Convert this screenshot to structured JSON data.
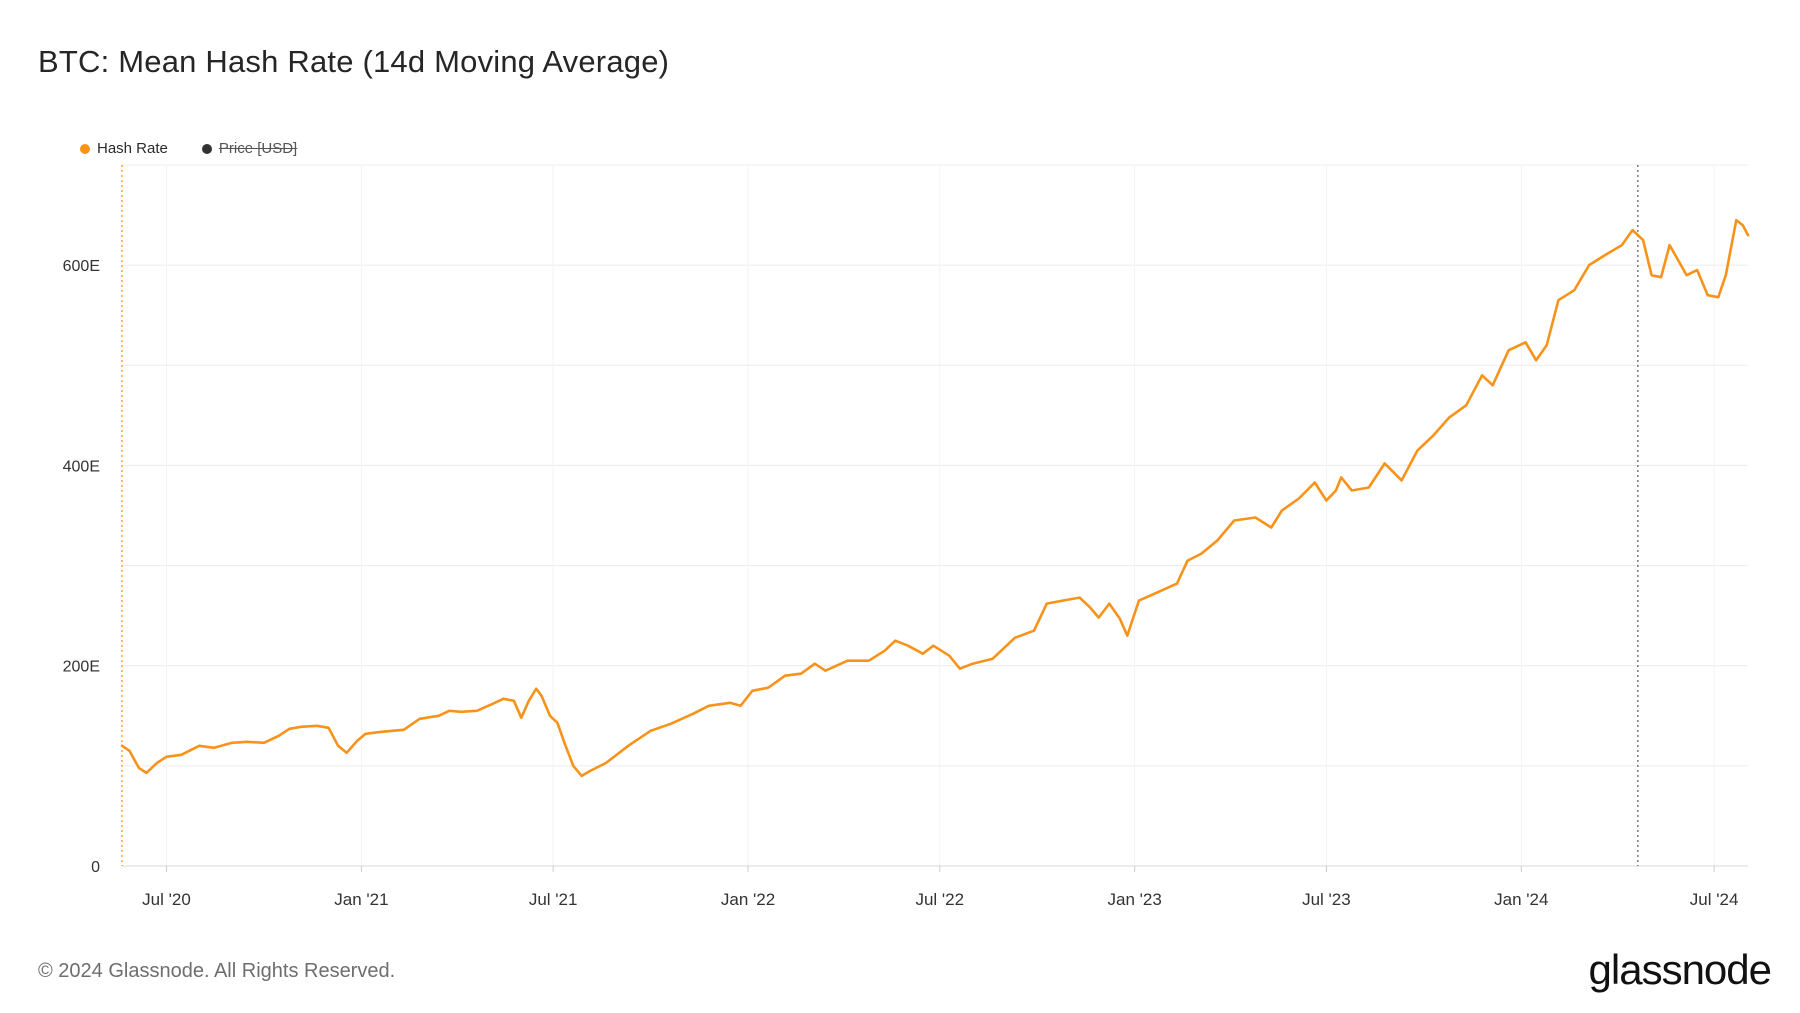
{
  "title": "BTC: Mean Hash Rate (14d Moving Average)",
  "legend": [
    {
      "label": "Hash Rate",
      "color": "#f7931a",
      "active": true
    },
    {
      "label": "Price [USD]",
      "color": "#333333",
      "active": false
    }
  ],
  "footer": "© 2024 Glassnode. All Rights Reserved.",
  "brand": "glassnode",
  "colors": {
    "series": "#f7931a",
    "grid": "#ececec",
    "axis_text": "#333333",
    "marker": "#666666"
  },
  "chart_data": {
    "type": "line",
    "title": "BTC: Mean Hash Rate (14d Moving Average)",
    "xlabel": "",
    "ylabel": "",
    "x_range": [
      "2020-05-20",
      "2024-08-02"
    ],
    "ylim": [
      0,
      700
    ],
    "y_ticks": [
      0,
      200,
      400,
      600
    ],
    "y_tick_labels": [
      "0",
      "200E",
      "400E",
      "600E"
    ],
    "x_ticks": [
      "2020-07-01",
      "2021-01-01",
      "2021-07-01",
      "2022-01-01",
      "2022-07-01",
      "2023-01-01",
      "2023-07-01",
      "2024-01-01",
      "2024-07-01"
    ],
    "x_tick_labels": [
      "Jul '20",
      "Jan '21",
      "Jul '21",
      "Jan '22",
      "Jul '22",
      "Jan '23",
      "Jul '23",
      "Jan '24",
      "Jul '24"
    ],
    "grid": true,
    "legend_position": "top-left",
    "markers": [
      {
        "x": "2024-04-20"
      }
    ],
    "series": [
      {
        "name": "Hash Rate",
        "unit": "E",
        "points": [
          [
            "2020-05-20",
            120
          ],
          [
            "2020-05-27",
            115
          ],
          [
            "2020-06-05",
            98
          ],
          [
            "2020-06-12",
            93
          ],
          [
            "2020-06-22",
            103
          ],
          [
            "2020-07-01",
            109
          ],
          [
            "2020-07-15",
            111
          ],
          [
            "2020-08-01",
            120
          ],
          [
            "2020-08-15",
            118
          ],
          [
            "2020-09-01",
            123
          ],
          [
            "2020-09-15",
            124
          ],
          [
            "2020-10-01",
            123
          ],
          [
            "2020-10-15",
            130
          ],
          [
            "2020-10-25",
            137
          ],
          [
            "2020-11-05",
            139
          ],
          [
            "2020-11-20",
            140
          ],
          [
            "2020-12-01",
            138
          ],
          [
            "2020-12-10",
            120
          ],
          [
            "2020-12-18",
            113
          ],
          [
            "2020-12-28",
            125
          ],
          [
            "2021-01-05",
            132
          ],
          [
            "2021-01-20",
            134
          ],
          [
            "2021-02-10",
            136
          ],
          [
            "2021-02-25",
            147
          ],
          [
            "2021-03-15",
            150
          ],
          [
            "2021-03-25",
            155
          ],
          [
            "2021-04-05",
            154
          ],
          [
            "2021-04-20",
            155
          ],
          [
            "2021-05-05",
            162
          ],
          [
            "2021-05-15",
            167
          ],
          [
            "2021-05-25",
            165
          ],
          [
            "2021-06-01",
            148
          ],
          [
            "2021-06-08",
            165
          ],
          [
            "2021-06-15",
            177
          ],
          [
            "2021-06-20",
            170
          ],
          [
            "2021-06-28",
            150
          ],
          [
            "2021-07-05",
            143
          ],
          [
            "2021-07-12",
            122
          ],
          [
            "2021-07-20",
            100
          ],
          [
            "2021-07-28",
            90
          ],
          [
            "2021-08-05",
            95
          ],
          [
            "2021-08-20",
            103
          ],
          [
            "2021-09-10",
            120
          ],
          [
            "2021-10-01",
            135
          ],
          [
            "2021-10-20",
            142
          ],
          [
            "2021-11-10",
            152
          ],
          [
            "2021-11-25",
            160
          ],
          [
            "2021-12-15",
            163
          ],
          [
            "2021-12-25",
            160
          ],
          [
            "2022-01-05",
            175
          ],
          [
            "2022-01-20",
            178
          ],
          [
            "2022-02-05",
            190
          ],
          [
            "2022-02-20",
            192
          ],
          [
            "2022-03-05",
            202
          ],
          [
            "2022-03-15",
            195
          ],
          [
            "2022-04-05",
            205
          ],
          [
            "2022-04-25",
            205
          ],
          [
            "2022-05-10",
            215
          ],
          [
            "2022-05-20",
            225
          ],
          [
            "2022-06-01",
            220
          ],
          [
            "2022-06-15",
            212
          ],
          [
            "2022-06-25",
            220
          ],
          [
            "2022-07-10",
            210
          ],
          [
            "2022-07-20",
            197
          ],
          [
            "2022-08-01",
            202
          ],
          [
            "2022-08-20",
            207
          ],
          [
            "2022-09-10",
            228
          ],
          [
            "2022-09-28",
            235
          ],
          [
            "2022-10-10",
            262
          ],
          [
            "2022-10-25",
            265
          ],
          [
            "2022-11-10",
            268
          ],
          [
            "2022-11-20",
            258
          ],
          [
            "2022-11-28",
            248
          ],
          [
            "2022-12-08",
            262
          ],
          [
            "2022-12-18",
            247
          ],
          [
            "2022-12-25",
            230
          ],
          [
            "2023-01-05",
            265
          ],
          [
            "2023-01-20",
            272
          ],
          [
            "2023-02-10",
            282
          ],
          [
            "2023-02-20",
            305
          ],
          [
            "2023-03-05",
            312
          ],
          [
            "2023-03-20",
            325
          ],
          [
            "2023-04-05",
            345
          ],
          [
            "2023-04-25",
            348
          ],
          [
            "2023-05-10",
            338
          ],
          [
            "2023-05-20",
            355
          ],
          [
            "2023-06-05",
            367
          ],
          [
            "2023-06-20",
            383
          ],
          [
            "2023-07-01",
            365
          ],
          [
            "2023-07-10",
            375
          ],
          [
            "2023-07-15",
            388
          ],
          [
            "2023-07-25",
            375
          ],
          [
            "2023-08-10",
            378
          ],
          [
            "2023-08-25",
            402
          ],
          [
            "2023-09-10",
            385
          ],
          [
            "2023-09-25",
            415
          ],
          [
            "2023-10-10",
            430
          ],
          [
            "2023-10-25",
            448
          ],
          [
            "2023-11-10",
            460
          ],
          [
            "2023-11-25",
            490
          ],
          [
            "2023-12-05",
            480
          ],
          [
            "2023-12-20",
            515
          ],
          [
            "2024-01-05",
            523
          ],
          [
            "2024-01-15",
            505
          ],
          [
            "2024-01-25",
            520
          ],
          [
            "2024-02-05",
            565
          ],
          [
            "2024-02-20",
            575
          ],
          [
            "2024-03-05",
            600
          ],
          [
            "2024-03-20",
            610
          ],
          [
            "2024-04-05",
            620
          ],
          [
            "2024-04-15",
            635
          ],
          [
            "2024-04-25",
            625
          ],
          [
            "2024-05-03",
            590
          ],
          [
            "2024-05-12",
            588
          ],
          [
            "2024-05-20",
            620
          ],
          [
            "2024-05-28",
            605
          ],
          [
            "2024-06-05",
            590
          ],
          [
            "2024-06-15",
            595
          ],
          [
            "2024-06-25",
            570
          ],
          [
            "2024-07-05",
            568
          ],
          [
            "2024-07-12",
            590
          ],
          [
            "2024-07-22",
            645
          ],
          [
            "2024-07-28",
            640
          ],
          [
            "2024-08-02",
            630
          ]
        ]
      }
    ]
  }
}
